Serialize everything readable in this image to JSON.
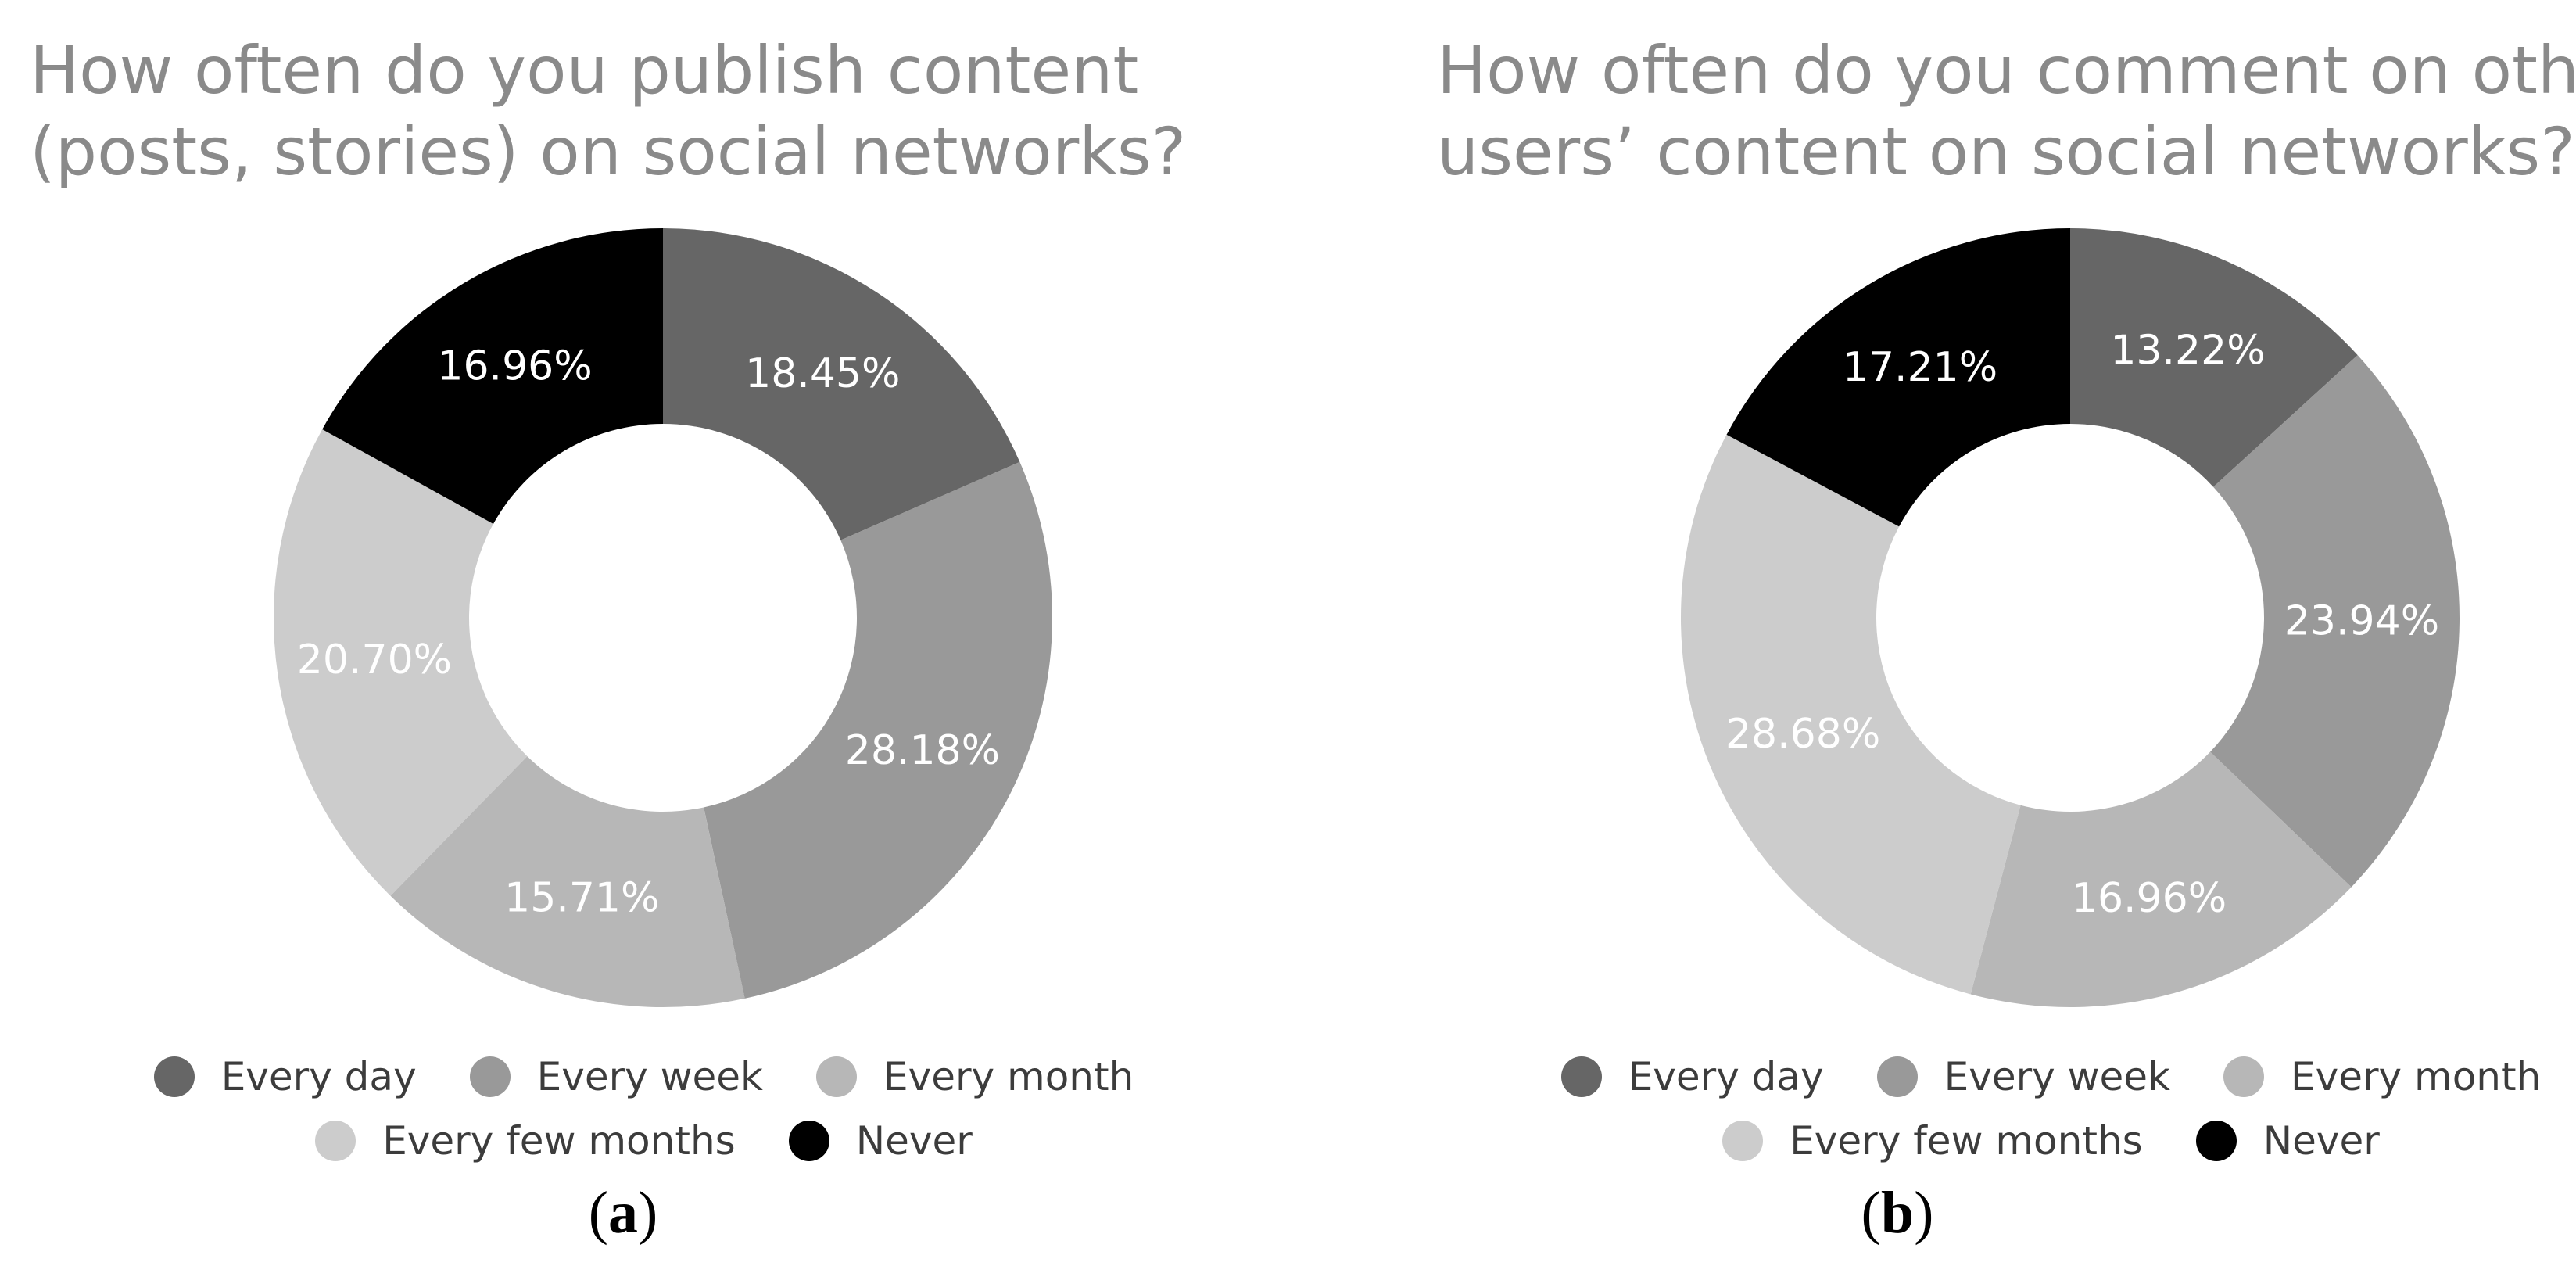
{
  "chart_data": [
    {
      "type": "pie",
      "title": "How often do you publish content (posts, stories) on social networks?",
      "categories": [
        "Every day",
        "Every week",
        "Every month",
        "Every few months",
        "Never"
      ],
      "values": [
        18.45,
        28.18,
        15.71,
        20.7,
        16.96
      ],
      "data_labels": [
        "18.45%",
        "28.18%",
        "15.71%",
        "20.70%",
        "16.96%"
      ],
      "colors": [
        "#666666",
        "#999999",
        "#b7b7b7",
        "#cccccc",
        "#000000"
      ],
      "label_colors": [
        "#ffffff",
        "#ffffff",
        "#ffffff",
        "#ffffff",
        "#ffffff"
      ],
      "legend_placement": "bottom",
      "caption_letter": "a"
    },
    {
      "type": "pie",
      "title": "How often do you comment on other users’ content on social networks?",
      "categories": [
        "Every day",
        "Every week",
        "Every month",
        "Every few months",
        "Never"
      ],
      "values": [
        13.22,
        23.94,
        16.96,
        28.68,
        17.21
      ],
      "data_labels": [
        "13.22%",
        "23.94%",
        "16.96%",
        "28.68%",
        "17.21%"
      ],
      "colors": [
        "#666666",
        "#999999",
        "#b7b7b7",
        "#cccccc",
        "#000000"
      ],
      "label_colors": [
        "#ffffff",
        "#ffffff",
        "#ffffff",
        "#ffffff",
        "#ffffff"
      ],
      "legend_placement": "bottom",
      "caption_letter": "b"
    }
  ]
}
